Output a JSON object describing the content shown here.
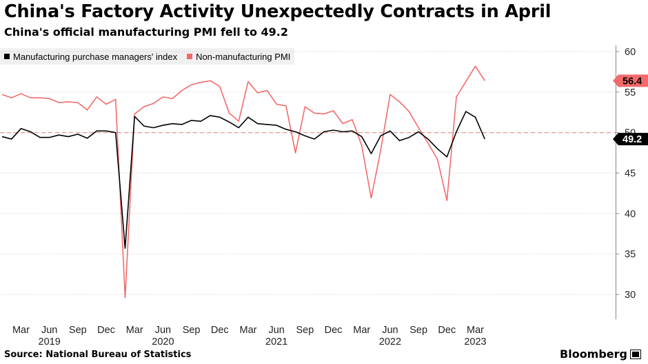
{
  "header": {
    "title": "China's Factory Activity Unexpectedly Contracts in April",
    "subtitle": "China's official manufacturing PMI fell to 49.2"
  },
  "footer": {
    "source": "Source: National Bureau of Statistics",
    "brand": "Bloomberg"
  },
  "colors": {
    "manufacturing": "#000000",
    "non_manufacturing": "#f26a6a",
    "gridline": "#cccccc",
    "reference_line": "#e8a0a0"
  },
  "chart_data": {
    "type": "line",
    "title": "China's Factory Activity Unexpectedly Contracts in April",
    "subtitle": "China's official manufacturing PMI fell to 49.2",
    "ylim": [
      27,
      61
    ],
    "yticks": [
      30,
      35,
      40,
      45,
      50,
      55,
      60
    ],
    "reference_line": 50,
    "grid": true,
    "legend_position": "top-left",
    "x_start": "2019-01",
    "x_month_labels": [
      {
        "index": 2,
        "label": "Mar"
      },
      {
        "index": 5,
        "label": "Jun"
      },
      {
        "index": 8,
        "label": "Sep"
      },
      {
        "index": 11,
        "label": "Dec"
      },
      {
        "index": 14,
        "label": "Mar"
      },
      {
        "index": 17,
        "label": "Jun"
      },
      {
        "index": 20,
        "label": "Sep"
      },
      {
        "index": 23,
        "label": "Dec"
      },
      {
        "index": 26,
        "label": "Mar"
      },
      {
        "index": 29,
        "label": "Jun"
      },
      {
        "index": 32,
        "label": "Sep"
      },
      {
        "index": 35,
        "label": "Dec"
      },
      {
        "index": 38,
        "label": "Mar"
      },
      {
        "index": 41,
        "label": "Jun"
      },
      {
        "index": 44,
        "label": "Sep"
      },
      {
        "index": 47,
        "label": "Dec"
      },
      {
        "index": 50,
        "label": "Mar"
      }
    ],
    "x_year_labels": [
      {
        "index": 5,
        "label": "2019"
      },
      {
        "index": 17,
        "label": "2020"
      },
      {
        "index": 29,
        "label": "2021"
      },
      {
        "index": 41,
        "label": "2022"
      },
      {
        "index": 50,
        "label": "2023"
      }
    ],
    "series": [
      {
        "name": "Manufacturing purchase managers' index",
        "key": "manufacturing",
        "last_value_label": "49.2",
        "values": [
          49.5,
          49.2,
          50.5,
          50.1,
          49.4,
          49.4,
          49.7,
          49.5,
          49.8,
          49.3,
          50.2,
          50.2,
          50.0,
          35.7,
          52.0,
          50.8,
          50.6,
          50.9,
          51.1,
          51.0,
          51.5,
          51.4,
          52.1,
          51.9,
          51.3,
          50.6,
          51.9,
          51.1,
          51.0,
          50.9,
          50.4,
          50.1,
          49.6,
          49.2,
          50.1,
          50.3,
          50.1,
          50.2,
          49.5,
          47.4,
          49.6,
          50.2,
          49.0,
          49.4,
          50.1,
          49.2,
          48.0,
          47.0,
          50.1,
          52.6,
          51.9,
          49.2
        ]
      },
      {
        "name": "Non-manufacturing PMI",
        "key": "non_manufacturing",
        "last_value_label": "56.4",
        "values": [
          54.7,
          54.3,
          54.8,
          54.3,
          54.3,
          54.2,
          53.7,
          53.8,
          53.7,
          52.8,
          54.4,
          53.5,
          54.1,
          29.6,
          52.3,
          53.2,
          53.6,
          54.4,
          54.2,
          55.2,
          55.9,
          56.2,
          56.4,
          55.7,
          52.4,
          51.4,
          56.3,
          54.9,
          55.2,
          53.5,
          53.3,
          47.5,
          53.2,
          52.4,
          52.3,
          52.7,
          51.1,
          51.6,
          48.4,
          41.9,
          47.8,
          54.7,
          53.8,
          52.6,
          50.6,
          48.7,
          46.7,
          41.6,
          54.4,
          56.3,
          58.2,
          56.4
        ]
      }
    ]
  }
}
